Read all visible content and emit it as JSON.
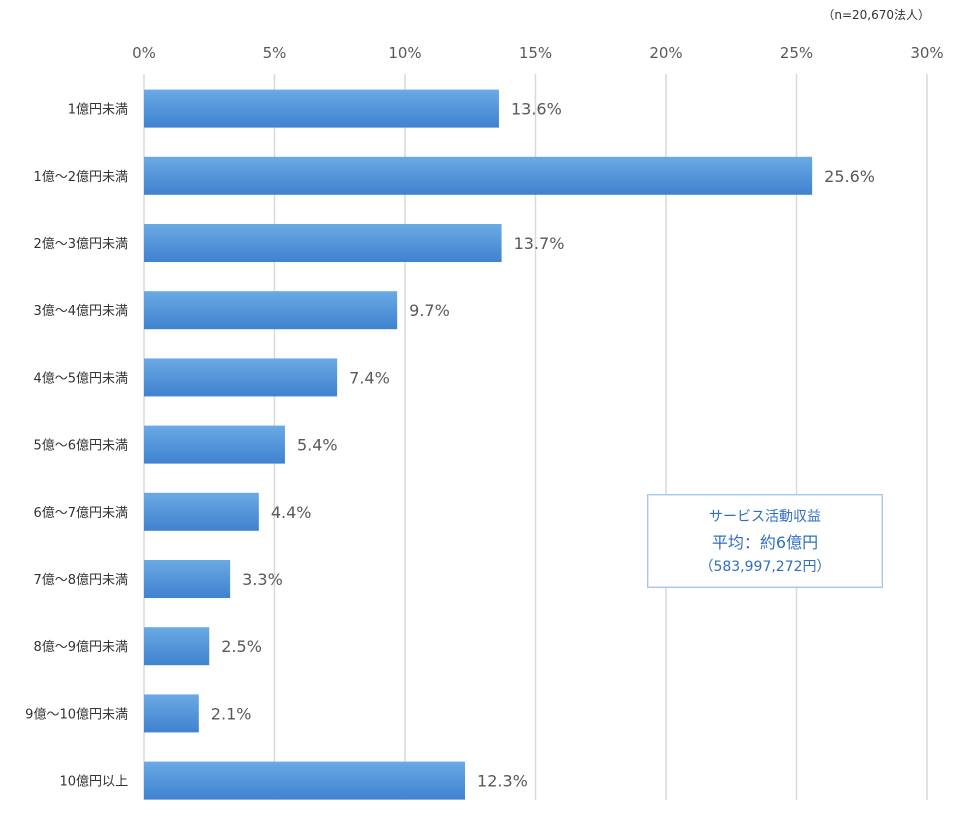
{
  "sample_note": "（n=20,670法人）",
  "summary": {
    "title": "サービス活動収益",
    "average": "平均：約6億円",
    "exact": "（583,997,272円）"
  },
  "colors": {
    "bar_top": "#6aaae4",
    "bar_bottom": "#3f82cf",
    "gridline": "#d9d9d9",
    "axis_text": "#595959",
    "category_text": "#333333",
    "summary_text": "#2f6fc0",
    "summary_border": "#a7c6ea"
  },
  "chart_data": {
    "type": "bar",
    "orientation": "horizontal",
    "categories": [
      "1億円未満",
      "1億～2億円未満",
      "2億～3億円未満",
      "3億～4億円未満",
      "4億～5億円未満",
      "5億～6億円未満",
      "6億～7億円未満",
      "7億～8億円未満",
      "8億～9億円未満",
      "9億～10億円未満",
      "10億円以上"
    ],
    "values": [
      13.6,
      25.6,
      13.7,
      9.7,
      7.4,
      5.4,
      4.4,
      3.3,
      2.5,
      2.1,
      12.3
    ],
    "value_labels": [
      "13.6%",
      "25.6%",
      "13.7%",
      "9.7%",
      "7.4%",
      "5.4%",
      "4.4%",
      "3.3%",
      "2.5%",
      "2.1%",
      "12.3%"
    ],
    "xlim": [
      0,
      30
    ],
    "x_ticks": [
      0,
      5,
      10,
      15,
      20,
      25,
      30
    ],
    "x_tick_labels": [
      "0%",
      "5%",
      "10%",
      "15%",
      "20%",
      "25%",
      "30%"
    ],
    "x_axis_position": "top",
    "grid": true,
    "legend": "none",
    "title": "",
    "xlabel": "",
    "ylabel": ""
  }
}
